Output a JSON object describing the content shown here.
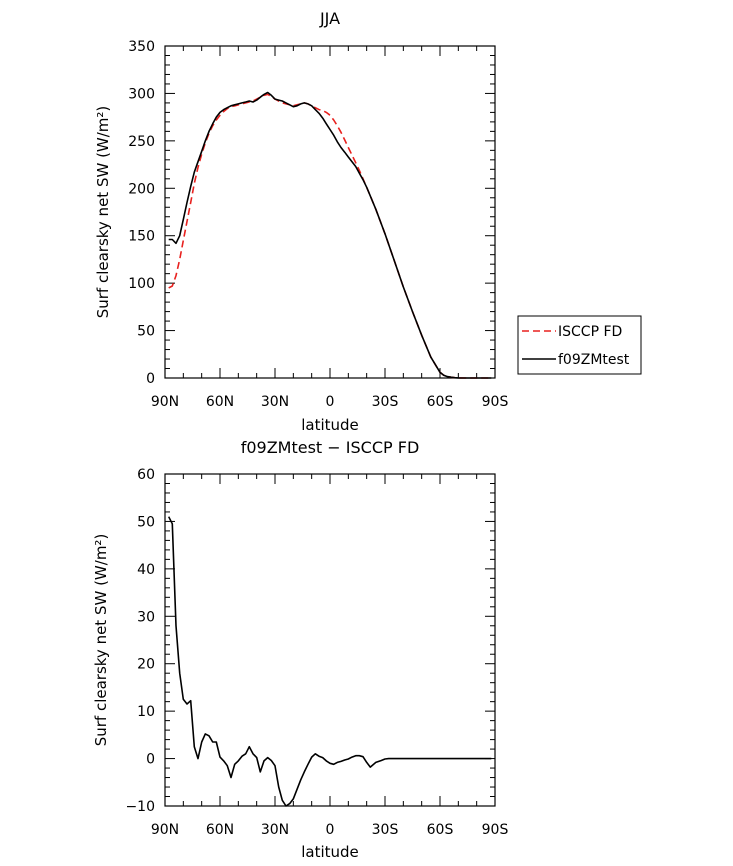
{
  "chart_data": [
    {
      "type": "line",
      "title": "JJA",
      "xlabel": "latitude",
      "ylabel": "Surf clearsky net SW (W/m²)",
      "xlim": [
        90,
        -90
      ],
      "ylim": [
        0,
        350
      ],
      "xticks": [
        90,
        60,
        30,
        0,
        -30,
        -60,
        -90
      ],
      "xtick_labels": [
        "90N",
        "60N",
        "30N",
        "0",
        "30S",
        "60S",
        "90S"
      ],
      "yticks": [
        0,
        50,
        100,
        150,
        200,
        250,
        300,
        350
      ],
      "ytick_labels": [
        "0",
        "50",
        "100",
        "150",
        "200",
        "250",
        "300",
        "350"
      ],
      "legend_position": "right",
      "series": [
        {
          "name": "ISCCP FD",
          "color": "#e8211e",
          "dash": "dashed",
          "x": [
            88,
            86,
            84,
            82,
            80,
            78,
            76,
            74,
            72,
            70,
            68,
            66,
            64,
            62,
            60,
            58,
            56,
            54,
            52,
            50,
            48,
            46,
            44,
            42,
            40,
            38,
            36,
            34,
            32,
            30,
            28,
            26,
            24,
            22,
            20,
            18,
            16,
            14,
            12,
            10,
            8,
            6,
            4,
            2,
            0,
            -2,
            -4,
            -6,
            -8,
            -10,
            -12,
            -14,
            -16,
            -18,
            -20,
            -25,
            -30,
            -35,
            -40,
            -45,
            -50,
            -55,
            -60,
            -62,
            -64,
            -66,
            -68,
            -70,
            -74,
            -78,
            -82,
            -86,
            -88
          ],
          "y": [
            95,
            97,
            108,
            125,
            145,
            165,
            185,
            205,
            222,
            236,
            248,
            258,
            266,
            272,
            277,
            281,
            284,
            286,
            287,
            288,
            289,
            290,
            291,
            292,
            294,
            296,
            298,
            299,
            297,
            294,
            292,
            290,
            289,
            288,
            287,
            288,
            289,
            290,
            289,
            287,
            285,
            283,
            282,
            280,
            277,
            272,
            266,
            259,
            251,
            243,
            235,
            227,
            219,
            210,
            201,
            178,
            152,
            124,
            96,
            70,
            45,
            22,
            6,
            3,
            1.5,
            0.8,
            0.3,
            0.1,
            0,
            0,
            0,
            0,
            0
          ]
        },
        {
          "name": "f09ZMtest",
          "color": "#000000",
          "dash": "solid",
          "x": [
            88,
            86,
            84,
            82,
            80,
            78,
            76,
            74,
            72,
            70,
            68,
            66,
            64,
            62,
            60,
            58,
            56,
            54,
            52,
            50,
            48,
            46,
            44,
            42,
            40,
            38,
            36,
            34,
            32,
            30,
            28,
            26,
            24,
            22,
            20,
            18,
            16,
            14,
            12,
            10,
            8,
            6,
            4,
            2,
            0,
            -2,
            -4,
            -6,
            -8,
            -10,
            -12,
            -14,
            -16,
            -18,
            -20,
            -25,
            -30,
            -35,
            -40,
            -45,
            -50,
            -55,
            -60,
            -62,
            -64,
            -66,
            -68,
            -70,
            -74,
            -78,
            -82,
            -86,
            -88
          ],
          "y": [
            146,
            146,
            142,
            150,
            167,
            185,
            202,
            217,
            228,
            239,
            250,
            260,
            268,
            275,
            280,
            283,
            285,
            287,
            288,
            289,
            290,
            291,
            292,
            291,
            293,
            296,
            299,
            301,
            298,
            294,
            293,
            292,
            290,
            288,
            286,
            287,
            289,
            290,
            289,
            287,
            283,
            279,
            274,
            268,
            262,
            256,
            249,
            243,
            238,
            233,
            228,
            223,
            216,
            209,
            201,
            178,
            152,
            124,
            96,
            70,
            45,
            22,
            6,
            3,
            1.5,
            0.8,
            0.3,
            0.1,
            0,
            0,
            0,
            0,
            0
          ]
        }
      ]
    },
    {
      "type": "line",
      "title": "f09ZMtest − ISCCP FD",
      "xlabel": "latitude",
      "ylabel": "Surf clearsky net SW (W/m²)",
      "xlim": [
        90,
        -90
      ],
      "ylim": [
        -10,
        60
      ],
      "xticks": [
        90,
        60,
        30,
        0,
        -30,
        -60,
        -90
      ],
      "xtick_labels": [
        "90N",
        "60N",
        "30N",
        "0",
        "30S",
        "60S",
        "90S"
      ],
      "yticks": [
        -10,
        0,
        10,
        20,
        30,
        40,
        50,
        60
      ],
      "ytick_labels": [
        "−10",
        "0",
        "10",
        "20",
        "30",
        "40",
        "50",
        "60"
      ],
      "series": [
        {
          "color": "#000000",
          "dash": "solid",
          "x": [
            88,
            86,
            84,
            82,
            80,
            78,
            76,
            74,
            72,
            70,
            68,
            66,
            64,
            62,
            60,
            58,
            56,
            54,
            52,
            50,
            48,
            46,
            44,
            42,
            40,
            38,
            36,
            34,
            32,
            30,
            28,
            26,
            24,
            22,
            20,
            18,
            16,
            14,
            12,
            10,
            8,
            6,
            4,
            2,
            0,
            -2,
            -4,
            -6,
            -8,
            -10,
            -12,
            -14,
            -16,
            -18,
            -20,
            -22,
            -25,
            -28,
            -30,
            -32,
            -34,
            -36,
            -38,
            -40,
            -42,
            -44,
            -46,
            -48,
            -50,
            -52,
            -54,
            -56,
            -58,
            -60,
            -62,
            -64,
            -66,
            -68,
            -70,
            -72,
            -74,
            -76,
            -78,
            -80,
            -82,
            -84,
            -86,
            -88
          ],
          "y": [
            51,
            49.5,
            28,
            18,
            12.5,
            11.5,
            12.2,
            2.5,
            0,
            3.5,
            5.2,
            4.8,
            3.5,
            3.5,
            0.3,
            -0.5,
            -1.5,
            -4,
            -1.2,
            -0.5,
            0.5,
            1,
            2.5,
            1,
            0.2,
            -2.8,
            -0.5,
            0.2,
            -0.4,
            -1.5,
            -6,
            -8.8,
            -10,
            -9.5,
            -8.5,
            -6.5,
            -4.5,
            -2.8,
            -1.2,
            0.3,
            1,
            0.5,
            0.2,
            -0.5,
            -1,
            -1.2,
            -0.8,
            -0.6,
            -0.3,
            -0.1,
            0.3,
            0.6,
            0.6,
            0.4,
            -0.8,
            -1.8,
            -0.8,
            -0.4,
            -0.1,
            0,
            0,
            0,
            0,
            0,
            0,
            0,
            0,
            0,
            0,
            0,
            0,
            0,
            0,
            0,
            0,
            0,
            0,
            0,
            0,
            0,
            0,
            0,
            0,
            0,
            0,
            0,
            0,
            0
          ]
        }
      ]
    }
  ]
}
